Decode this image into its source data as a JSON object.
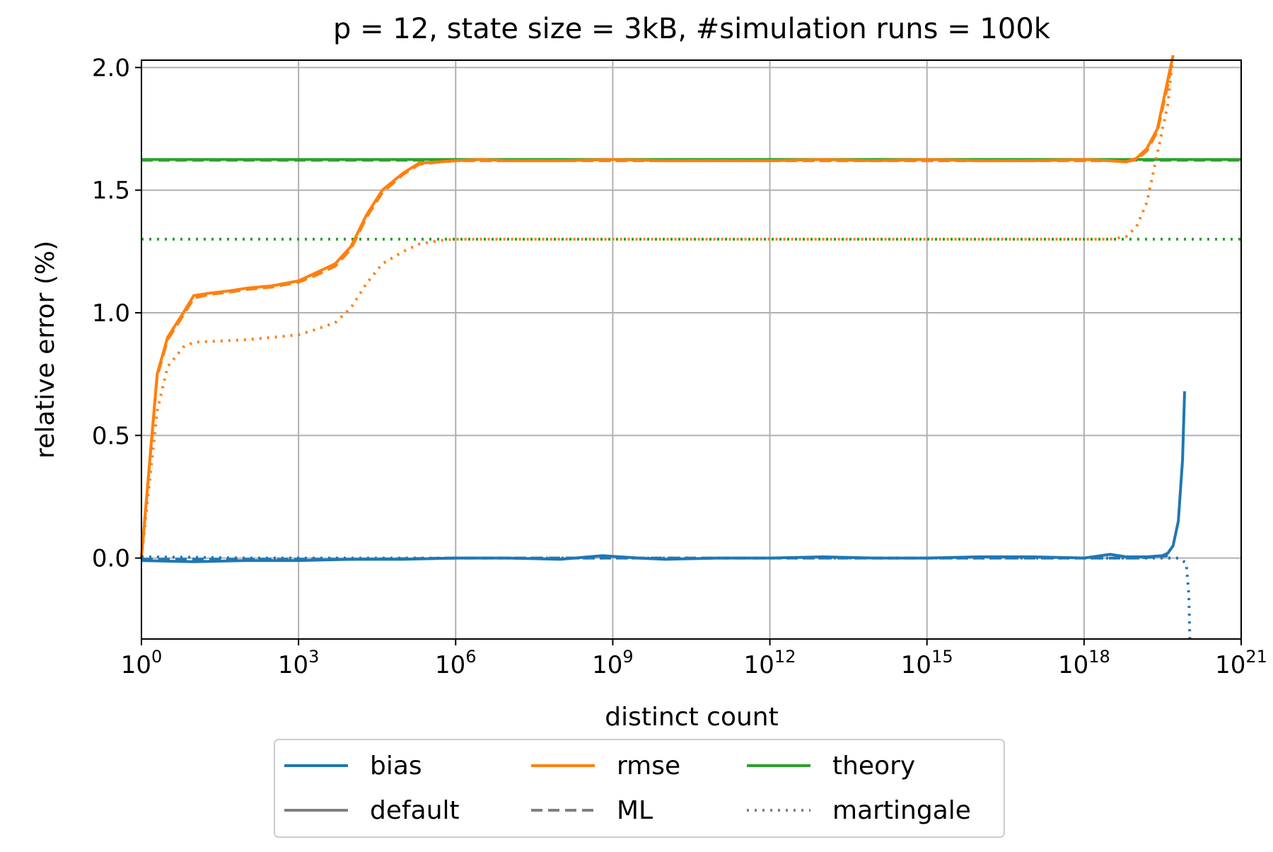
{
  "chart_data": {
    "type": "line",
    "title": "p = 12, state size = 3kB, #simulation runs = 100k",
    "xlabel": "distinct count",
    "ylabel": "relative error (%)",
    "x_scale": "log10",
    "xlim_exp": [
      0,
      21
    ],
    "ylim": [
      -0.33,
      2.03
    ],
    "grid": true,
    "x_ticks": [
      {
        "base": "10",
        "exp": "0",
        "value_exp": 0
      },
      {
        "base": "10",
        "exp": "3",
        "value_exp": 3
      },
      {
        "base": "10",
        "exp": "6",
        "value_exp": 6
      },
      {
        "base": "10",
        "exp": "9",
        "value_exp": 9
      },
      {
        "base": "10",
        "exp": "12",
        "value_exp": 12
      },
      {
        "base": "10",
        "exp": "15",
        "value_exp": 15
      },
      {
        "base": "10",
        "exp": "18",
        "value_exp": 18
      },
      {
        "base": "10",
        "exp": "21",
        "value_exp": 21
      }
    ],
    "y_ticks": [
      {
        "label": "0.0",
        "value": 0.0
      },
      {
        "label": "0.5",
        "value": 0.5
      },
      {
        "label": "1.0",
        "value": 1.0
      },
      {
        "label": "1.5",
        "value": 1.5
      },
      {
        "label": "2.0",
        "value": 2.0
      }
    ],
    "colors": {
      "bias": "#1f77b4",
      "rmse": "#ff7f0e",
      "theory": "#2ca02c",
      "style_key": "#808080"
    },
    "series": [
      {
        "name": "rmse default",
        "metric": "rmse",
        "style": "default",
        "x_log10": [
          0,
          0.3,
          0.5,
          0.8,
          1.0,
          1.3,
          1.7,
          2.0,
          2.5,
          3.0,
          3.3,
          3.7,
          4.0,
          4.3,
          4.6,
          5.0,
          5.3,
          5.7,
          6.0,
          6.5,
          7.0,
          8.0,
          9.0,
          10,
          11,
          12,
          13,
          14,
          15,
          16,
          17,
          18,
          18.5,
          18.8,
          19.0,
          19.2,
          19.4,
          19.6,
          19.7
        ],
        "values": [
          0.0,
          0.75,
          0.9,
          1.0,
          1.07,
          1.08,
          1.09,
          1.1,
          1.11,
          1.13,
          1.16,
          1.2,
          1.27,
          1.4,
          1.5,
          1.57,
          1.61,
          1.615,
          1.62,
          1.625,
          1.62,
          1.62,
          1.625,
          1.62,
          1.62,
          1.62,
          1.625,
          1.62,
          1.625,
          1.62,
          1.62,
          1.625,
          1.62,
          1.615,
          1.63,
          1.67,
          1.75,
          1.95,
          2.05
        ]
      },
      {
        "name": "rmse ML",
        "metric": "rmse",
        "style": "ML",
        "x_log10": [
          0,
          0.3,
          0.5,
          0.8,
          1.0,
          1.3,
          1.7,
          2.0,
          2.5,
          3.0,
          3.3,
          3.7,
          4.0,
          4.3,
          4.6,
          5.0,
          5.3,
          5.7,
          6.0,
          6.5,
          7.0,
          8.0,
          9.0,
          10,
          11,
          12,
          13,
          14,
          15,
          16,
          17,
          18,
          18.5,
          18.8,
          19.0,
          19.2,
          19.4,
          19.6,
          19.7
        ],
        "values": [
          0.0,
          0.74,
          0.89,
          0.99,
          1.06,
          1.075,
          1.085,
          1.095,
          1.105,
          1.125,
          1.15,
          1.19,
          1.26,
          1.39,
          1.49,
          1.565,
          1.605,
          1.615,
          1.62,
          1.62,
          1.62,
          1.62,
          1.62,
          1.62,
          1.62,
          1.62,
          1.62,
          1.62,
          1.62,
          1.62,
          1.62,
          1.62,
          1.62,
          1.615,
          1.625,
          1.66,
          1.74,
          1.93,
          2.05
        ]
      },
      {
        "name": "rmse martingale",
        "metric": "rmse",
        "style": "martingale",
        "x_log10": [
          0,
          0.3,
          0.5,
          0.8,
          1.0,
          1.5,
          2.0,
          2.5,
          3.0,
          3.3,
          3.7,
          4.0,
          4.3,
          4.6,
          5.0,
          5.3,
          5.7,
          6.0,
          7.0,
          8.0,
          9.0,
          10,
          11,
          12,
          13,
          14,
          15,
          16,
          17,
          18,
          18.5,
          18.8,
          19.0,
          19.2,
          19.4,
          19.6,
          19.7
        ],
        "values": [
          0.0,
          0.6,
          0.78,
          0.86,
          0.88,
          0.885,
          0.89,
          0.9,
          0.91,
          0.93,
          0.96,
          1.02,
          1.12,
          1.2,
          1.25,
          1.28,
          1.295,
          1.3,
          1.3,
          1.3,
          1.3,
          1.3,
          1.3,
          1.3,
          1.3,
          1.3,
          1.3,
          1.3,
          1.3,
          1.3,
          1.3,
          1.31,
          1.35,
          1.45,
          1.65,
          1.85,
          2.05
        ]
      },
      {
        "name": "bias default",
        "metric": "bias",
        "style": "default",
        "x_log10": [
          0,
          1,
          2,
          3,
          4,
          5,
          6,
          7,
          8,
          8.8,
          9.5,
          10,
          11,
          12,
          13,
          14,
          15,
          16,
          17,
          18,
          18.5,
          18.8,
          19.2,
          19.5,
          19.6,
          19.7,
          19.8,
          19.88,
          19.92
        ],
        "values": [
          -0.01,
          -0.015,
          -0.01,
          -0.01,
          -0.005,
          -0.005,
          0.0,
          0.0,
          -0.005,
          0.01,
          0.0,
          -0.005,
          0.0,
          0.0,
          0.005,
          0.0,
          0.0,
          0.005,
          0.005,
          0.0,
          0.015,
          0.005,
          0.005,
          0.01,
          0.02,
          0.05,
          0.15,
          0.4,
          0.68
        ]
      },
      {
        "name": "bias ML",
        "metric": "bias",
        "style": "ML",
        "x_log10": [
          0,
          2,
          4,
          6,
          8,
          10,
          12,
          14,
          16,
          18,
          19.0,
          19.4,
          19.6
        ],
        "values": [
          -0.005,
          -0.005,
          -0.005,
          0.0,
          0.0,
          0.0,
          0.0,
          0.0,
          0.0,
          0.0,
          0.0,
          0.005,
          0.01
        ]
      },
      {
        "name": "bias martingale",
        "metric": "bias",
        "style": "martingale",
        "x_log10": [
          0,
          1,
          2,
          3,
          5,
          7,
          9,
          11,
          13,
          15,
          17,
          18,
          19,
          19.5,
          19.8,
          19.95,
          20.0,
          20.02
        ],
        "values": [
          0.005,
          0.003,
          0.0,
          0.0,
          0.0,
          0.0,
          0.0,
          0.0,
          0.0,
          0.0,
          0.0,
          0.0,
          0.0,
          0.0,
          0.0,
          -0.02,
          -0.15,
          -0.33
        ]
      },
      {
        "name": "theory default",
        "metric": "theory",
        "style": "default",
        "x_log10": [
          0,
          21
        ],
        "values": [
          1.625,
          1.625
        ]
      },
      {
        "name": "theory ML",
        "metric": "theory",
        "style": "ML",
        "x_log10": [
          0,
          21
        ],
        "values": [
          1.622,
          1.622
        ]
      },
      {
        "name": "theory martingale",
        "metric": "theory",
        "style": "martingale",
        "x_log10": [
          0,
          21
        ],
        "values": [
          1.3,
          1.3
        ]
      }
    ],
    "legend": {
      "placement": "below axes, centered",
      "entries": [
        {
          "label": "bias",
          "color": "#1f77b4",
          "style": "default"
        },
        {
          "label": "rmse",
          "color": "#ff7f0e",
          "style": "default"
        },
        {
          "label": "theory",
          "color": "#2ca02c",
          "style": "default"
        },
        {
          "label": "default",
          "color": "#808080",
          "style": "default"
        },
        {
          "label": "ML",
          "color": "#808080",
          "style": "ML"
        },
        {
          "label": "martingale",
          "color": "#808080",
          "style": "martingale"
        }
      ]
    }
  }
}
